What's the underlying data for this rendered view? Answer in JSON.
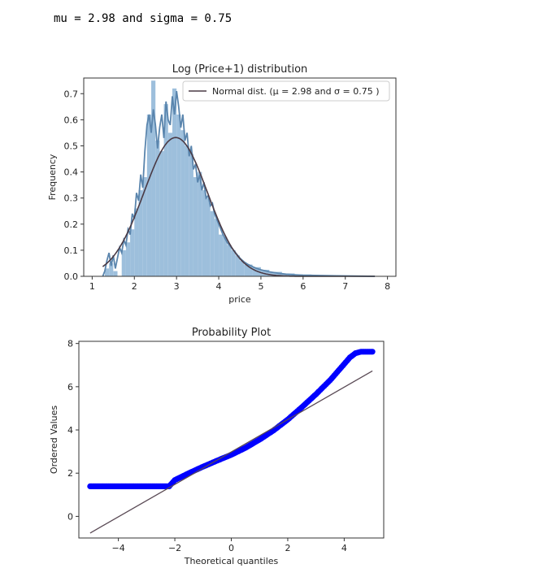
{
  "output_text": "mu = 2.98 and sigma = 0.75",
  "chart_data": [
    {
      "type": "histogram",
      "title": "Log (Price+1) distribution",
      "xlabel": "price",
      "ylabel": "Frequency",
      "xlim": [
        0.8,
        8.2
      ],
      "ylim": [
        0.0,
        0.76
      ],
      "xticks": [
        1,
        2,
        3,
        4,
        5,
        6,
        7,
        8
      ],
      "yticks": [
        0.0,
        0.1,
        0.2,
        0.3,
        0.4,
        0.5,
        0.6,
        0.7
      ],
      "legend": {
        "label": "Normal dist. ($\\mu=$ 2.98 and $\\sigma=$ 0.75 )",
        "display": "Normal dist. (μ = 2.98 and σ = 0.75 )",
        "position": "upper right"
      },
      "colors": {
        "hist": "#9dbfdc",
        "kde": "#5a85ad",
        "normal": "#4a3a45"
      },
      "hist_bins": [
        {
          "x0": 1.3,
          "x1": 1.4,
          "y": 0.03
        },
        {
          "x0": 1.4,
          "x1": 1.5,
          "y": 0.05
        },
        {
          "x0": 1.5,
          "x1": 1.6,
          "y": 0.02
        },
        {
          "x0": 1.7,
          "x1": 1.8,
          "y": 0.1
        },
        {
          "x0": 1.8,
          "x1": 1.9,
          "y": 0.13
        },
        {
          "x0": 1.9,
          "x1": 2.0,
          "y": 0.18
        },
        {
          "x0": 2.0,
          "x1": 2.1,
          "y": 0.26
        },
        {
          "x0": 2.1,
          "x1": 2.2,
          "y": 0.33
        },
        {
          "x0": 2.2,
          "x1": 2.3,
          "y": 0.38
        },
        {
          "x0": 2.3,
          "x1": 2.4,
          "y": 0.62
        },
        {
          "x0": 2.4,
          "x1": 2.5,
          "y": 0.75
        },
        {
          "x0": 2.5,
          "x1": 2.6,
          "y": 0.52
        },
        {
          "x0": 2.6,
          "x1": 2.7,
          "y": 0.48
        },
        {
          "x0": 2.7,
          "x1": 2.8,
          "y": 0.66
        },
        {
          "x0": 2.8,
          "x1": 2.9,
          "y": 0.55
        },
        {
          "x0": 2.9,
          "x1": 3.0,
          "y": 0.72
        },
        {
          "x0": 3.0,
          "x1": 3.1,
          "y": 0.62
        },
        {
          "x0": 3.1,
          "x1": 3.2,
          "y": 0.56
        },
        {
          "x0": 3.2,
          "x1": 3.3,
          "y": 0.5
        },
        {
          "x0": 3.3,
          "x1": 3.4,
          "y": 0.47
        },
        {
          "x0": 3.4,
          "x1": 3.5,
          "y": 0.38
        },
        {
          "x0": 3.5,
          "x1": 3.6,
          "y": 0.4
        },
        {
          "x0": 3.6,
          "x1": 3.7,
          "y": 0.33
        },
        {
          "x0": 3.7,
          "x1": 3.8,
          "y": 0.3
        },
        {
          "x0": 3.8,
          "x1": 3.9,
          "y": 0.25
        },
        {
          "x0": 3.9,
          "x1": 4.0,
          "y": 0.22
        },
        {
          "x0": 4.0,
          "x1": 4.1,
          "y": 0.16
        },
        {
          "x0": 4.1,
          "x1": 4.2,
          "y": 0.15
        },
        {
          "x0": 4.2,
          "x1": 4.3,
          "y": 0.12
        },
        {
          "x0": 4.3,
          "x1": 4.4,
          "y": 0.1
        },
        {
          "x0": 4.4,
          "x1": 4.5,
          "y": 0.08
        },
        {
          "x0": 4.5,
          "x1": 4.6,
          "y": 0.06
        },
        {
          "x0": 4.6,
          "x1": 4.8,
          "y": 0.045
        },
        {
          "x0": 4.8,
          "x1": 5.0,
          "y": 0.035
        },
        {
          "x0": 5.0,
          "x1": 5.2,
          "y": 0.025
        },
        {
          "x0": 5.2,
          "x1": 5.5,
          "y": 0.017
        },
        {
          "x0": 5.5,
          "x1": 5.8,
          "y": 0.011
        },
        {
          "x0": 5.8,
          "x1": 6.2,
          "y": 0.007
        },
        {
          "x0": 6.2,
          "x1": 6.8,
          "y": 0.004
        },
        {
          "x0": 6.8,
          "x1": 7.7,
          "y": 0.002
        }
      ],
      "kde": {
        "x": [
          1.25,
          1.3,
          1.35,
          1.4,
          1.45,
          1.5,
          1.55,
          1.6,
          1.65,
          1.7,
          1.75,
          1.8,
          1.85,
          1.9,
          1.95,
          2.0,
          2.05,
          2.1,
          2.15,
          2.2,
          2.25,
          2.3,
          2.35,
          2.4,
          2.45,
          2.5,
          2.55,
          2.6,
          2.65,
          2.7,
          2.75,
          2.8,
          2.85,
          2.9,
          2.95,
          3.0,
          3.05,
          3.1,
          3.15,
          3.2,
          3.25,
          3.3,
          3.35,
          3.4,
          3.45,
          3.5,
          3.55,
          3.6,
          3.65,
          3.7,
          3.75,
          3.8,
          3.85,
          3.9,
          3.95,
          4.0,
          4.1,
          4.2,
          4.3,
          4.4,
          4.5,
          4.6,
          4.7,
          4.8,
          4.9,
          5.0,
          5.2,
          5.4,
          5.6,
          5.8,
          6.0,
          6.4,
          6.8,
          7.2,
          7.7
        ],
        "y": [
          0.0,
          0.02,
          0.06,
          0.09,
          0.04,
          0.08,
          0.03,
          0.07,
          0.11,
          0.09,
          0.14,
          0.12,
          0.18,
          0.16,
          0.24,
          0.22,
          0.32,
          0.29,
          0.39,
          0.34,
          0.48,
          0.58,
          0.62,
          0.55,
          0.64,
          0.58,
          0.49,
          0.57,
          0.62,
          0.53,
          0.67,
          0.6,
          0.58,
          0.69,
          0.62,
          0.71,
          0.65,
          0.57,
          0.62,
          0.52,
          0.55,
          0.46,
          0.5,
          0.41,
          0.43,
          0.36,
          0.39,
          0.33,
          0.36,
          0.3,
          0.31,
          0.27,
          0.28,
          0.24,
          0.22,
          0.2,
          0.16,
          0.13,
          0.11,
          0.09,
          0.07,
          0.055,
          0.045,
          0.037,
          0.03,
          0.025,
          0.017,
          0.012,
          0.008,
          0.006,
          0.004,
          0.003,
          0.002,
          0.001,
          0.0
        ]
      },
      "normal": {
        "mu": 2.98,
        "sigma": 0.75,
        "x_range": [
          1.25,
          7.7
        ]
      }
    },
    {
      "type": "scatter",
      "title": "Probability Plot",
      "xlabel": "Theoretical quantiles",
      "ylabel": "Ordered Values",
      "xlim": [
        -5.4,
        5.4
      ],
      "ylim": [
        -1.0,
        8.1
      ],
      "xticks": [
        -4,
        -2,
        0,
        2,
        4
      ],
      "yticks": [
        0,
        2,
        4,
        6,
        8
      ],
      "colors": {
        "points": "#0000ff",
        "fit_line": "#5a4a55"
      },
      "fit_line": {
        "slope": 0.75,
        "intercept": 2.98,
        "x_range": [
          -5.0,
          5.0
        ]
      },
      "quantile_curve": {
        "x": [
          -5.0,
          -4.0,
          -3.0,
          -2.5,
          -2.2,
          -2.0,
          -1.5,
          -1.0,
          -0.5,
          0.0,
          0.5,
          1.0,
          1.5,
          2.0,
          2.5,
          3.0,
          3.5,
          3.8,
          4.0,
          4.2,
          4.4,
          4.6,
          4.8,
          5.0
        ],
        "y": [
          1.39,
          1.39,
          1.39,
          1.39,
          1.39,
          1.68,
          2.0,
          2.3,
          2.58,
          2.85,
          3.17,
          3.55,
          3.98,
          4.48,
          5.05,
          5.65,
          6.3,
          6.75,
          7.05,
          7.35,
          7.55,
          7.62,
          7.62,
          7.62
        ]
      }
    }
  ]
}
